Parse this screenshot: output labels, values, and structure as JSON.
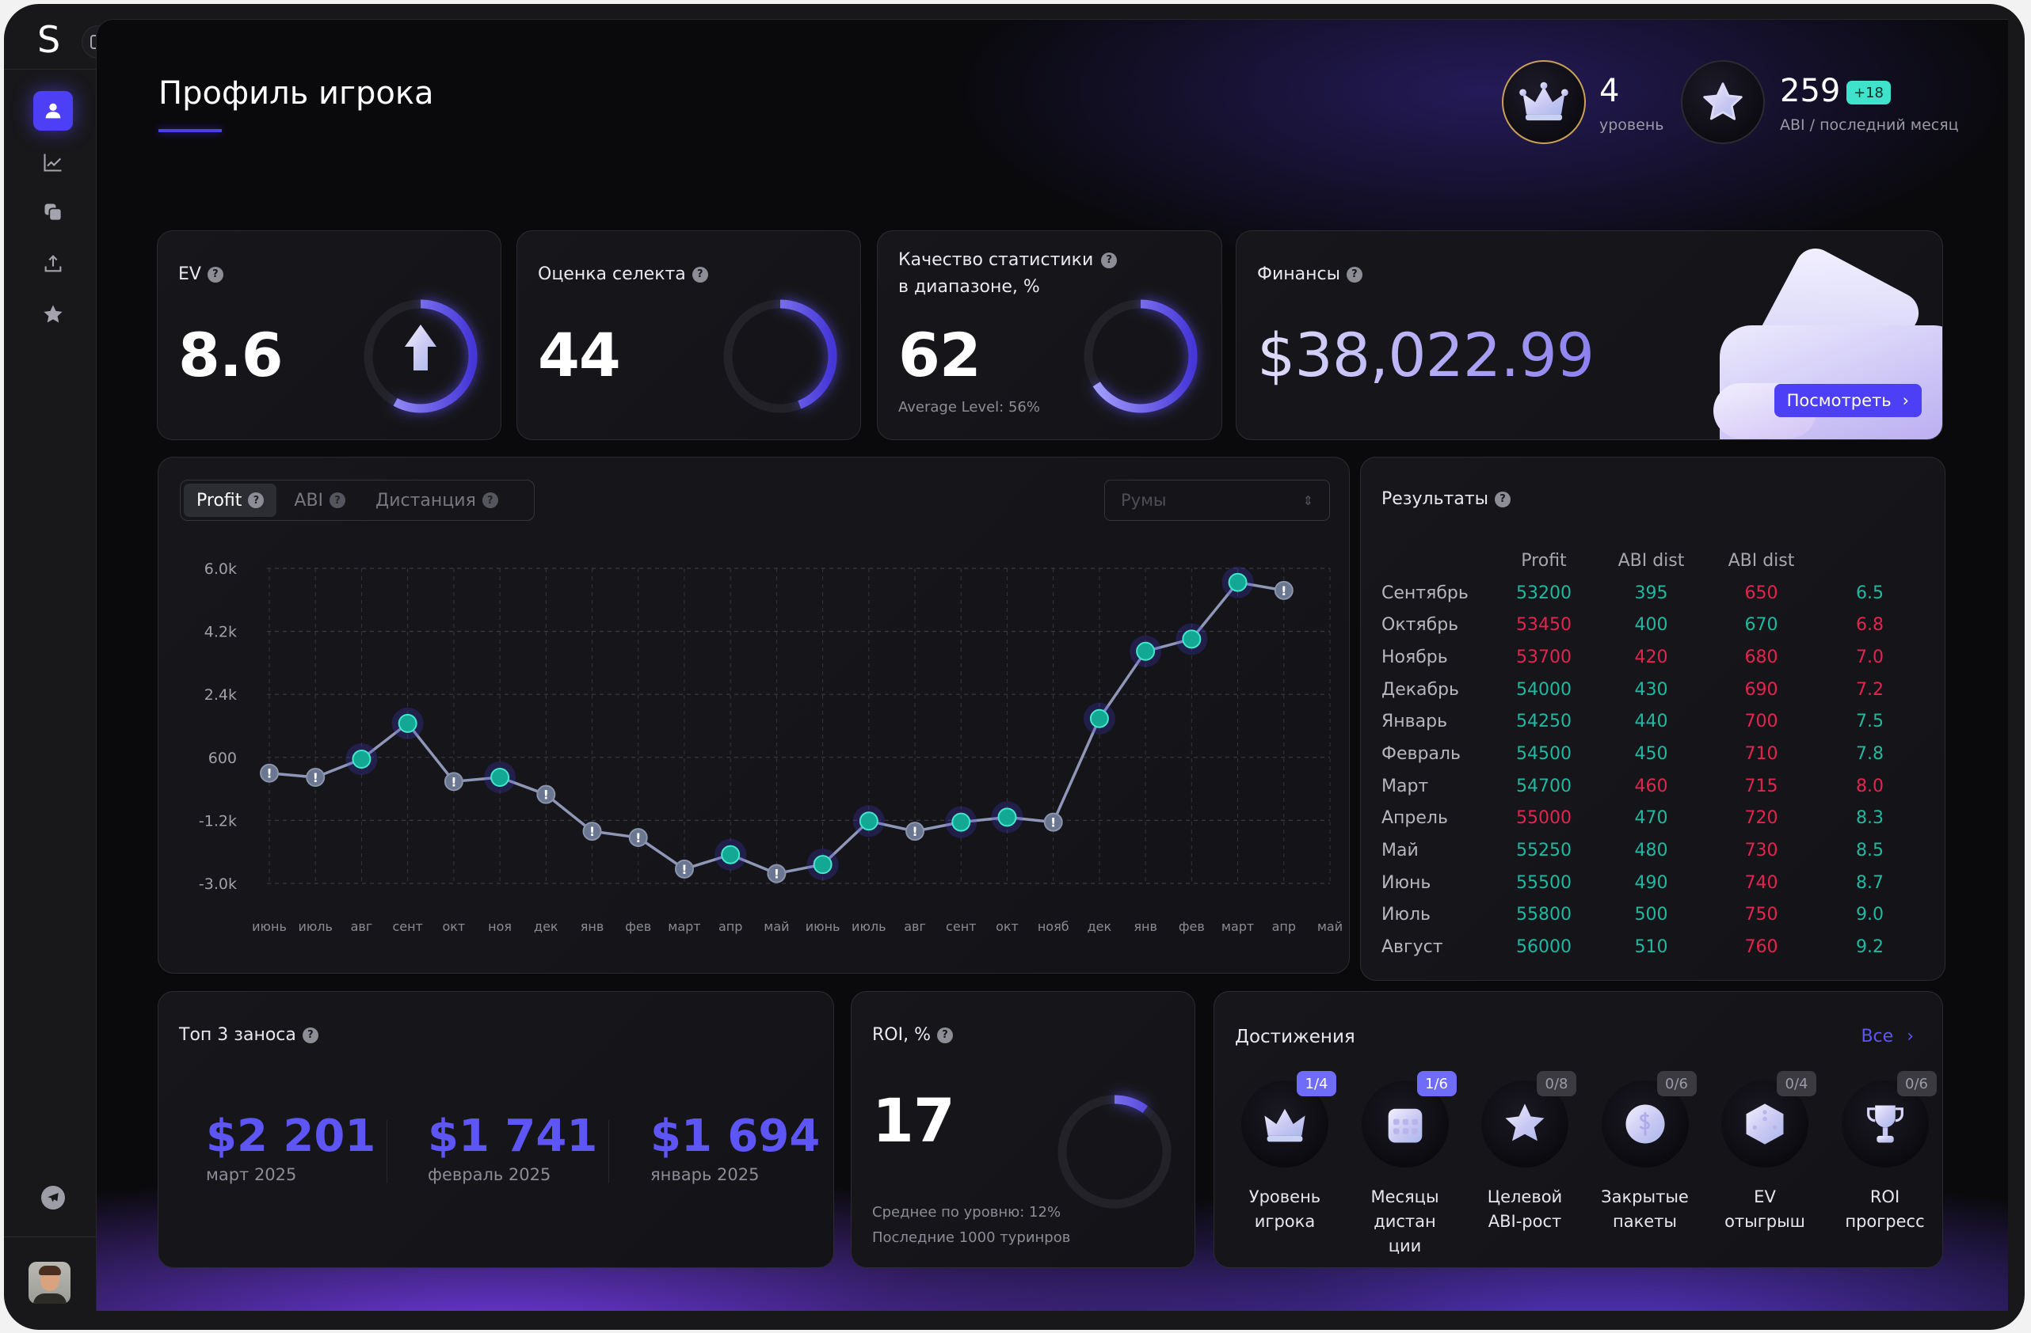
{
  "sidebar": {
    "logo": "S",
    "items": [
      {
        "icon": "user-icon",
        "label": "profile",
        "active": true
      },
      {
        "icon": "chart-line-icon",
        "label": "stats"
      },
      {
        "icon": "copy-icon",
        "label": "packages"
      },
      {
        "icon": "upload-icon",
        "label": "upload"
      },
      {
        "icon": "star-icon",
        "label": "favorites"
      }
    ],
    "bottom": [
      "telegram-icon",
      "avatar"
    ]
  },
  "header": {
    "title": "Профиль игрока",
    "level": {
      "value": "4",
      "label": "уровень"
    },
    "abi": {
      "value": "259",
      "delta": "+18",
      "label": "ABI / последний месяц"
    }
  },
  "kpis": {
    "ev": {
      "title": "EV",
      "value": "8.6",
      "gauge": 0.58
    },
    "select": {
      "title": "Оценка селекта",
      "value": "44",
      "gauge": 0.44
    },
    "quality": {
      "title_line1": "Качество статистики",
      "title_line2": "в диапазоне, %",
      "value": "62",
      "sub": "Average Level: 56%",
      "gauge": 0.66
    },
    "finance": {
      "title": "Финансы",
      "value": "$38,022.99",
      "button": "Посмотреть"
    }
  },
  "chart_panel": {
    "tabs": [
      {
        "label": "Profit",
        "active": true
      },
      {
        "label": "ABI"
      },
      {
        "label": "Дистанция"
      }
    ],
    "select_placeholder": "Румы"
  },
  "chart_data": {
    "type": "line",
    "title": "Profit",
    "xlabel": "",
    "ylabel": "",
    "ylim": [
      -3000,
      6000
    ],
    "yticks": [
      6000,
      4200,
      2400,
      600,
      -1200,
      -3000
    ],
    "ytick_labels": [
      "6.0k",
      "4.2k",
      "2.4k",
      "600",
      "-1.2k",
      "-3.0k"
    ],
    "x": [
      "июнь",
      "июль",
      "авг",
      "сент",
      "окт",
      "ноя",
      "дек",
      "янв",
      "фев",
      "март",
      "апр",
      "май",
      "июнь",
      "июль",
      "авг",
      "сент",
      "окт",
      "нояб",
      "дек",
      "янв",
      "фев",
      "март",
      "апр",
      "май"
    ],
    "series": [
      {
        "name": "Profit",
        "values": [
          150,
          30,
          550,
          1570,
          -90,
          30,
          -460,
          -1510,
          -1690,
          -2590,
          -2180,
          -2720,
          -2460,
          -1220,
          -1510,
          -1250,
          -1110,
          -1250,
          1710,
          3630,
          3980,
          5600,
          5370,
          null
        ],
        "status": [
          "warn",
          "warn",
          "good",
          "good",
          "warn",
          "good",
          "warn",
          "warn",
          "warn",
          "warn",
          "good",
          "warn",
          "good",
          "good",
          "warn",
          "good",
          "good",
          "warn",
          "good",
          "good",
          "good",
          "good",
          "warn",
          null
        ]
      }
    ],
    "grid": true
  },
  "results": {
    "title": "Результаты",
    "headers": [
      "",
      "Profit",
      "ABI dist",
      "ABI dist",
      ""
    ],
    "rows": [
      [
        {
          "v": "Сентябрь"
        },
        {
          "v": "53200",
          "t": "g"
        },
        {
          "v": "395",
          "t": "g"
        },
        {
          "v": "650",
          "t": "r"
        },
        {
          "v": "6.5",
          "t": "g"
        }
      ],
      [
        {
          "v": "Октябрь"
        },
        {
          "v": "53450",
          "t": "r"
        },
        {
          "v": "400",
          "t": "g"
        },
        {
          "v": "670",
          "t": "g"
        },
        {
          "v": "6.8",
          "t": "r"
        }
      ],
      [
        {
          "v": "Ноябрь"
        },
        {
          "v": "53700",
          "t": "r"
        },
        {
          "v": "420",
          "t": "r"
        },
        {
          "v": "680",
          "t": "r"
        },
        {
          "v": "7.0",
          "t": "r"
        }
      ],
      [
        {
          "v": "Декабрь"
        },
        {
          "v": "54000",
          "t": "g"
        },
        {
          "v": "430",
          "t": "g"
        },
        {
          "v": "690",
          "t": "r"
        },
        {
          "v": "7.2",
          "t": "r"
        }
      ],
      [
        {
          "v": "Январь"
        },
        {
          "v": "54250",
          "t": "g"
        },
        {
          "v": "440",
          "t": "g"
        },
        {
          "v": "700",
          "t": "r"
        },
        {
          "v": "7.5",
          "t": "g"
        }
      ],
      [
        {
          "v": "Февраль"
        },
        {
          "v": "54500",
          "t": "g"
        },
        {
          "v": "450",
          "t": "g"
        },
        {
          "v": "710",
          "t": "r"
        },
        {
          "v": "7.8",
          "t": "g"
        }
      ],
      [
        {
          "v": "Март"
        },
        {
          "v": "54700",
          "t": "g"
        },
        {
          "v": "460",
          "t": "r"
        },
        {
          "v": "715",
          "t": "r"
        },
        {
          "v": "8.0",
          "t": "r"
        }
      ],
      [
        {
          "v": "Апрель"
        },
        {
          "v": "55000",
          "t": "r"
        },
        {
          "v": "470",
          "t": "g"
        },
        {
          "v": "720",
          "t": "r"
        },
        {
          "v": "8.3",
          "t": "g"
        }
      ],
      [
        {
          "v": "Май"
        },
        {
          "v": "55250",
          "t": "g"
        },
        {
          "v": "480",
          "t": "g"
        },
        {
          "v": "730",
          "t": "r"
        },
        {
          "v": "8.5",
          "t": "g"
        }
      ],
      [
        {
          "v": "Июнь"
        },
        {
          "v": "55500",
          "t": "g"
        },
        {
          "v": "490",
          "t": "g"
        },
        {
          "v": "740",
          "t": "r"
        },
        {
          "v": "8.7",
          "t": "g"
        }
      ],
      [
        {
          "v": "Июль"
        },
        {
          "v": "55800",
          "t": "g"
        },
        {
          "v": "500",
          "t": "g"
        },
        {
          "v": "750",
          "t": "r"
        },
        {
          "v": "9.0",
          "t": "g"
        }
      ],
      [
        {
          "v": "Август"
        },
        {
          "v": "56000",
          "t": "g"
        },
        {
          "v": "510",
          "t": "g"
        },
        {
          "v": "760",
          "t": "r"
        },
        {
          "v": "9.2",
          "t": "g"
        }
      ]
    ],
    "colors": {
      "g": "#1fb8a0",
      "r": "#e3244f"
    }
  },
  "top3": {
    "title": "Топ 3 заноса",
    "items": [
      {
        "amount": "$2 201",
        "period": "март 2025"
      },
      {
        "amount": "$1 741",
        "period": "февраль 2025"
      },
      {
        "amount": "$1 694",
        "period": "январь 2025"
      }
    ]
  },
  "roi": {
    "title": "ROI, %",
    "value": "17",
    "avg": "Среднее по уровню: 12%",
    "note": "Последние 1000 туринров",
    "gauge": 0.1
  },
  "achievements": {
    "title": "Достижения",
    "all_link": "Все",
    "items": [
      {
        "icon": "crown-icon",
        "label": "Уровень игрока",
        "progress": "1/4",
        "active": true
      },
      {
        "icon": "calendar-icon",
        "label": "Месяцы дистан ции",
        "progress": "1/6",
        "active": true
      },
      {
        "icon": "star-icon",
        "label": "Целевой ABI-рост",
        "progress": "0/8"
      },
      {
        "icon": "coin-icon",
        "label": "Закрытые пакеты",
        "progress": "0/6"
      },
      {
        "icon": "dice-icon",
        "label": "EV отыгрыш",
        "progress": "0/4"
      },
      {
        "icon": "trophy-icon",
        "label": "ROI прогресс",
        "progress": "0/6"
      }
    ]
  },
  "accent": "#4d3ff5"
}
